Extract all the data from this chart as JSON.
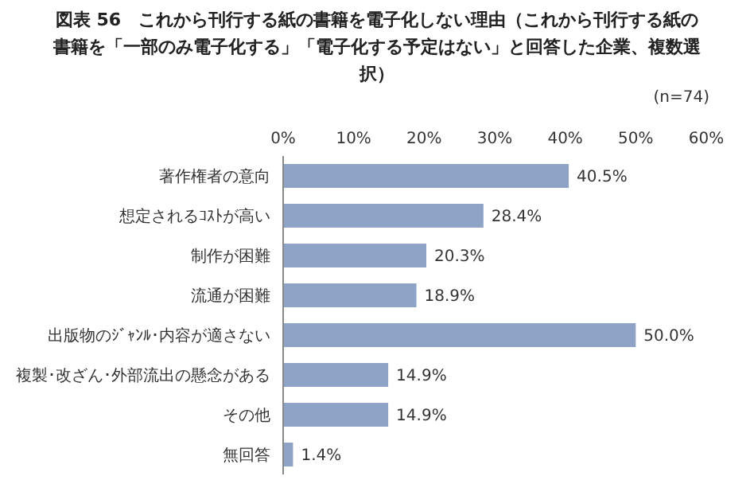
{
  "chart_data": {
    "type": "bar",
    "orientation": "horizontal",
    "title": "図表 56　これから刊行する紙の書籍を電子化しない理由（これから刊行する紙の書籍を「一部のみ電子化する」「電子化する予定はない」と回答した企業、複数選択）",
    "annotations": [
      "(n=74)"
    ],
    "categories": [
      "著作権者の意向",
      "想定されるｺｽﾄが高い",
      "制作が困難",
      "流通が困難",
      "出版物のｼﾞｬﾝﾙ･内容が適さない",
      "複製･改ざん･外部流出の懸念がある",
      "その他",
      "無回答"
    ],
    "values": [
      40.5,
      28.4,
      20.3,
      18.9,
      50.0,
      14.9,
      14.9,
      1.4
    ],
    "value_labels": [
      "40.5%",
      "28.4%",
      "20.3%",
      "18.9%",
      "50.0%",
      "14.9%",
      "14.9%",
      "1.4%"
    ],
    "color": "#8ea3c5",
    "xlim": [
      0,
      60
    ],
    "xticks": [
      {
        "value": 0,
        "label": "0%"
      },
      {
        "value": 10,
        "label": "10%"
      },
      {
        "value": 20,
        "label": "20%"
      },
      {
        "value": 30,
        "label": "30%"
      },
      {
        "value": 40,
        "label": "40%"
      },
      {
        "value": 50,
        "label": "50%"
      },
      {
        "value": 60,
        "label": "60%"
      }
    ],
    "grid": false,
    "legend": false
  }
}
